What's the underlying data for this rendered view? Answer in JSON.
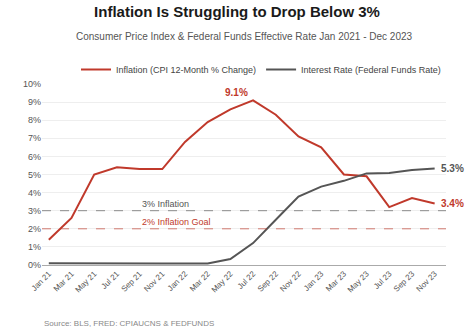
{
  "chart_data": {
    "type": "line",
    "title": "Inflation Is Struggling to Drop Below 3%",
    "subtitle": "Consumer Price Index & Federal Funds Effective Rate Jan 2021 - Dec 2023",
    "source": "Source: BLS, FRED: CPIAUCNS & FEDFUNDS",
    "categories": [
      "Jan 21",
      "Mar 21",
      "May 21",
      "Jul 21",
      "Sep 21",
      "Nov 21",
      "Jan 22",
      "Mar 22",
      "May 22",
      "Jul 22",
      "Sep 22",
      "Nov 22",
      "Jan 23",
      "Mar 23",
      "May 23",
      "Jul 23",
      "Sep 23",
      "Nov 23"
    ],
    "series": [
      {
        "name": "Inflation (CPI 12-Month % Change)",
        "color": "#c0392b",
        "values": [
          1.4,
          2.6,
          5.0,
          5.4,
          5.3,
          5.3,
          6.8,
          7.9,
          8.6,
          9.1,
          8.3,
          7.1,
          6.5,
          5.0,
          4.9,
          3.2,
          3.7,
          3.4
        ]
      },
      {
        "name": "Interest Rate (Federal Funds Rate)",
        "color": "#555555",
        "values": [
          0.09,
          0.08,
          0.08,
          0.1,
          0.08,
          0.08,
          0.08,
          0.08,
          0.33,
          1.21,
          2.5,
          3.78,
          4.33,
          4.65,
          5.06,
          5.08,
          5.25,
          5.33
        ]
      }
    ],
    "reference_lines": [
      {
        "y": 3.0,
        "label": "3% Inflation",
        "color": "#555555",
        "x": "Sep 21"
      },
      {
        "y": 2.0,
        "label": "2% Inflation Goal",
        "color": "#c0392b",
        "x": "Sep 21"
      }
    ],
    "annotations": [
      {
        "text": "9.1%",
        "x": "Jul 22",
        "y": 9.1,
        "color": "#c0392b"
      },
      {
        "text": "3.4%",
        "x": "Nov 23",
        "y": 3.4,
        "color": "#c0392b"
      },
      {
        "text": "5.3%",
        "x": "Nov 23",
        "y": 5.33,
        "color": "#555555"
      }
    ],
    "ylim": [
      0,
      10
    ],
    "yticks": [
      {
        "value": 0,
        "label": "0%"
      },
      {
        "value": 1,
        "label": "1%"
      },
      {
        "value": 2,
        "label": "2%"
      },
      {
        "value": 3,
        "label": "3%"
      },
      {
        "value": 4,
        "label": "4%"
      },
      {
        "value": 5,
        "label": "5%"
      },
      {
        "value": 6,
        "label": "6%"
      },
      {
        "value": 7,
        "label": "7%"
      },
      {
        "value": 8,
        "label": "8%"
      },
      {
        "value": 9,
        "label": "9%"
      },
      {
        "value": 10,
        "label": "10%"
      }
    ],
    "grid": true,
    "legend": "top"
  }
}
